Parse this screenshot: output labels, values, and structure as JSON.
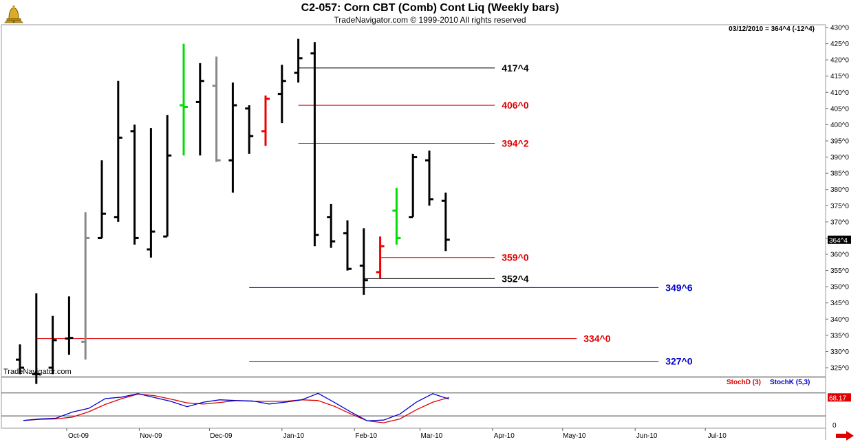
{
  "header": {
    "title": "C2-057:  Corn CBT (Comb) Cont Liq  (Weekly bars)",
    "subtitle": "TradeNavigator.com © 1999-2010 All rights reserved",
    "last_quote": "03/12/2010 = 364^4 (-12^4)",
    "watermark": "TradeNavigator.com"
  },
  "legend": {
    "stoch_d": "StochD (3)",
    "stoch_k": "StochK (5,3)"
  },
  "colors": {
    "up_highlight": "#00dd00",
    "down_highlight": "#ee0000",
    "neutral_bar": "#888888",
    "resistance": "#e00000",
    "support_blue": "#0000cc",
    "stoch_d": "#e00000",
    "stoch_k": "#0000cc"
  },
  "icons": {
    "logo": "trading-bell-logo-icon",
    "scroll": "red-arrow-right-icon"
  },
  "chart_data": [
    {
      "type": "ohlc",
      "title": "C2-057:  Corn CBT (Comb) Cont Liq  (Weekly bars)",
      "y_axis_ticks": [
        "325^0",
        "330^0",
        "335^0",
        "340^0",
        "345^0",
        "350^0",
        "355^0",
        "360^0",
        "365^0",
        "370^0",
        "375^0",
        "380^0",
        "385^0",
        "390^0",
        "395^0",
        "400^0",
        "405^0",
        "410^0",
        "415^0",
        "420^0",
        "425^0",
        "430^0"
      ],
      "ylim": [
        322,
        431
      ],
      "y_axis_position": "right",
      "x_axis_labels": [
        "Oct-09",
        "Nov-09",
        "Dec-09",
        "Jan-10",
        "Feb-10",
        "Mar-10",
        "Apr-10",
        "May-10",
        "Jun-10",
        "Jul-10"
      ],
      "last_price_label": "364^4",
      "bars": [
        {
          "week": "2009-09-11",
          "open": 327.5,
          "high": 332.2,
          "low": 323.0,
          "close": 325.0
        },
        {
          "week": "2009-09-18",
          "open": 323.0,
          "high": 348.0,
          "low": 320.0,
          "close": 323.0
        },
        {
          "week": "2009-09-25",
          "open": 325.0,
          "high": 341.0,
          "low": 323.0,
          "close": 333.5
        },
        {
          "week": "2009-10-02",
          "open": 334.0,
          "high": 347.0,
          "low": 329.0,
          "close": 334.2
        },
        {
          "week": "2009-10-09",
          "open": 333.0,
          "high": 373.0,
          "low": 327.5,
          "close": 365.0,
          "color": "neutral"
        },
        {
          "week": "2009-10-16",
          "open": 365.0,
          "high": 389.0,
          "low": 365.0,
          "close": 372.5
        },
        {
          "week": "2009-10-23",
          "open": 371.5,
          "high": 413.5,
          "low": 370.0,
          "close": 396.0
        },
        {
          "week": "2009-10-30",
          "open": 398.0,
          "high": 400.0,
          "low": 363.0,
          "close": 365.0
        },
        {
          "week": "2009-11-06",
          "open": 361.5,
          "high": 399.0,
          "low": 359.0,
          "close": 367.0
        },
        {
          "week": "2009-11-13",
          "open": 365.5,
          "high": 403.0,
          "low": 365.5,
          "close": 390.5
        },
        {
          "week": "2009-11-20",
          "open": 406.0,
          "high": 425.0,
          "low": 390.5,
          "close": 405.5,
          "color": "up"
        },
        {
          "week": "2009-11-27",
          "open": 407.0,
          "high": 419.0,
          "low": 390.5,
          "close": 413.5
        },
        {
          "week": "2009-12-04",
          "open": 412.0,
          "high": 421.0,
          "low": 388.5,
          "close": 389.0,
          "color": "neutral"
        },
        {
          "week": "2009-12-11",
          "open": 389.0,
          "high": 413.0,
          "low": 379.0,
          "close": 406.0
        },
        {
          "week": "2009-12-18",
          "open": 405.0,
          "high": 406.0,
          "low": 391.0,
          "close": 396.5
        },
        {
          "week": "2009-12-25",
          "open": 398.0,
          "high": 409.0,
          "low": 393.5,
          "close": 408.0,
          "color": "down"
        },
        {
          "week": "2010-01-01",
          "open": 409.5,
          "high": 418.5,
          "low": 400.5,
          "close": 413.5
        },
        {
          "week": "2010-01-08",
          "open": 416.0,
          "high": 426.5,
          "low": 413.0,
          "close": 420.5
        },
        {
          "week": "2010-01-15",
          "open": 422.0,
          "high": 425.5,
          "low": 362.5,
          "close": 366.0
        },
        {
          "week": "2010-01-22",
          "open": 371.5,
          "high": 375.5,
          "low": 362.0,
          "close": 364.0
        },
        {
          "week": "2010-01-29",
          "open": 366.5,
          "high": 370.5,
          "low": 355.0,
          "close": 355.5
        },
        {
          "week": "2010-02-05",
          "open": 356.5,
          "high": 368.0,
          "low": 347.5,
          "close": 352.0
        },
        {
          "week": "2010-02-12",
          "open": 354.5,
          "high": 365.5,
          "low": 352.5,
          "close": 362.5,
          "color": "down"
        },
        {
          "week": "2010-02-19",
          "open": 373.5,
          "high": 380.5,
          "low": 363.0,
          "close": 365.0,
          "color": "up"
        },
        {
          "week": "2010-02-26",
          "open": 371.5,
          "high": 391.0,
          "low": 371.5,
          "close": 390.0
        },
        {
          "week": "2010-03-05",
          "open": 389.0,
          "high": 392.0,
          "low": 375.0,
          "close": 377.0
        },
        {
          "week": "2010-03-12",
          "open": 376.5,
          "high": 379.0,
          "low": 361.0,
          "close": 364.5
        }
      ],
      "levels": [
        {
          "label": "417^4",
          "value": 417.5,
          "color": "black",
          "from": "2010-01-08",
          "to": "2010-04-02"
        },
        {
          "label": "406^0",
          "value": 406.0,
          "color": "red",
          "from": "2010-01-08",
          "to": "2010-04-02"
        },
        {
          "label": "394^2",
          "value": 394.25,
          "color": "red",
          "from": "2010-01-08",
          "to": "2010-04-02"
        },
        {
          "label": "359^0",
          "value": 359.0,
          "color": "red",
          "from": "2010-02-12",
          "to": "2010-04-02"
        },
        {
          "label": "352^4",
          "value": 352.5,
          "color": "black",
          "from": "2010-02-05",
          "to": "2010-04-02"
        },
        {
          "label": "349^6",
          "value": 349.75,
          "color": "blue",
          "from": "2009-12-18",
          "to": "2010-06-11"
        },
        {
          "label": "334^0",
          "value": 334.0,
          "color": "red",
          "from": "2009-09-18",
          "to": "2010-05-07"
        },
        {
          "label": "327^0",
          "value": 327.0,
          "color": "blue",
          "from": "2009-12-18",
          "to": "2010-06-11"
        }
      ]
    },
    {
      "type": "line",
      "title": "StochD (3) / StochK (5,3)",
      "ylim": [
        -5,
        110
      ],
      "y_axis_ticks": [
        "0"
      ],
      "reference_lines": [
        20,
        80
      ],
      "last_value_label": "68.17",
      "series": [
        {
          "name": "StochD (3)",
          "values": [
            8,
            11,
            12,
            17,
            31,
            50,
            65,
            77,
            73,
            64,
            54,
            51,
            55,
            60,
            58,
            58,
            58,
            62,
            60,
            45,
            25,
            7,
            2,
            12,
            36,
            56,
            68.17
          ]
        },
        {
          "name": "StochK (5,3)",
          "values": [
            8,
            12,
            14,
            30,
            40,
            65,
            69,
            78,
            68,
            58,
            44,
            56,
            62,
            60,
            59,
            51,
            56,
            62,
            79,
            55,
            30,
            7,
            9,
            25,
            56,
            78,
            64
          ]
        }
      ]
    }
  ]
}
